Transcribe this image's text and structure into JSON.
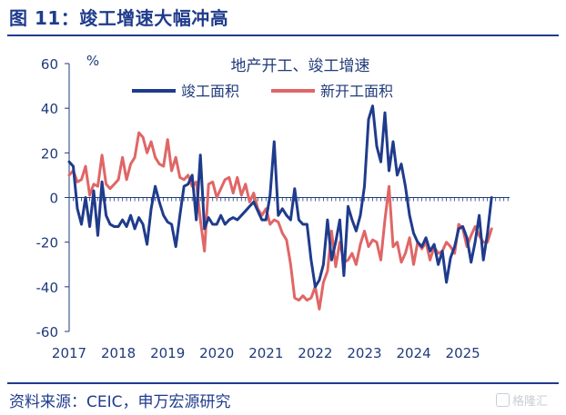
{
  "figure": {
    "title": "图 11：竣工增速大幅冲高",
    "source": "资料来源：CEIC，申万宏源研究",
    "watermark": "格隆汇"
  },
  "chart_data": {
    "type": "line",
    "title": "地产开工、竣工增速",
    "ylabel": "%",
    "ylim": [
      -60,
      60
    ],
    "yticks": [
      60,
      40,
      20,
      0,
      -20,
      -40,
      -60
    ],
    "xticks": [
      "2017",
      "2018",
      "2019",
      "2020",
      "2021",
      "2022",
      "2023",
      "2024",
      "2025"
    ],
    "xrange": [
      2017.0,
      2025.95
    ],
    "grid": false,
    "legend_position": "top",
    "series": [
      {
        "name": "竣工面积",
        "color": "#1f3b8c",
        "x": [
          2017.0,
          2017.083,
          2017.167,
          2017.25,
          2017.333,
          2017.417,
          2017.5,
          2017.583,
          2017.667,
          2017.75,
          2017.833,
          2017.917,
          2018.0,
          2018.083,
          2018.167,
          2018.25,
          2018.333,
          2018.417,
          2018.5,
          2018.583,
          2018.667,
          2018.75,
          2018.833,
          2018.917,
          2019.0,
          2019.083,
          2019.167,
          2019.25,
          2019.333,
          2019.417,
          2019.5,
          2019.583,
          2019.667,
          2019.75,
          2019.833,
          2019.917,
          2020.0,
          2020.083,
          2020.167,
          2020.25,
          2020.333,
          2020.417,
          2020.5,
          2020.583,
          2020.667,
          2020.75,
          2020.833,
          2020.917,
          2021.0,
          2021.083,
          2021.167,
          2021.25,
          2021.333,
          2021.417,
          2021.5,
          2021.583,
          2021.667,
          2021.75,
          2021.833,
          2021.917,
          2022.0,
          2022.083,
          2022.167,
          2022.25,
          2022.333,
          2022.417,
          2022.5,
          2022.583,
          2022.667,
          2022.75,
          2022.833,
          2022.917,
          2023.0,
          2023.083,
          2023.167,
          2023.25,
          2023.333,
          2023.417,
          2023.5,
          2023.583,
          2023.667,
          2023.75,
          2023.833,
          2023.917,
          2024.0,
          2024.083,
          2024.167,
          2024.25,
          2024.333,
          2024.417,
          2024.5,
          2024.583,
          2024.667,
          2024.75,
          2024.833,
          2024.917,
          2025.0,
          2025.083,
          2025.167,
          2025.25,
          2025.333,
          2025.417,
          2025.5,
          2025.583
        ],
        "values": [
          16,
          14,
          -5,
          -12,
          0,
          -13,
          3,
          -17,
          7,
          -8,
          -12,
          -13,
          -13,
          -10,
          -13,
          -8,
          -14,
          -9,
          -12,
          -21,
          -5,
          5,
          -2,
          -8,
          -11,
          -12,
          -22,
          -8,
          5,
          6,
          10,
          -10,
          19,
          -14,
          -9,
          -12,
          -12,
          -8,
          -12,
          -10,
          -9,
          -10,
          -8,
          -6,
          -4,
          -2,
          -6,
          -10,
          -10,
          1,
          25,
          -8,
          -5,
          -8,
          -10,
          4,
          -10,
          -12,
          -12,
          -28,
          -40,
          -37,
          -30,
          -10,
          -28,
          -20,
          -10,
          -35,
          -4,
          -10,
          -15,
          -8,
          5,
          35,
          41,
          23,
          16,
          38,
          12,
          25,
          10,
          15,
          5,
          -8,
          -16,
          -20,
          -22,
          -18,
          -24,
          -21,
          -30,
          -24,
          -38,
          -27,
          -22,
          -14,
          -13,
          -18,
          -29,
          -20,
          -8,
          -28,
          -16,
          0
        ]
      },
      {
        "name": "新开工面积",
        "color": "#e06666",
        "x": [
          2017.0,
          2017.083,
          2017.167,
          2017.25,
          2017.333,
          2017.417,
          2017.5,
          2017.583,
          2017.667,
          2017.75,
          2017.833,
          2017.917,
          2018.0,
          2018.083,
          2018.167,
          2018.25,
          2018.333,
          2018.417,
          2018.5,
          2018.583,
          2018.667,
          2018.75,
          2018.833,
          2018.917,
          2019.0,
          2019.083,
          2019.167,
          2019.25,
          2019.333,
          2019.417,
          2019.5,
          2019.583,
          2019.667,
          2019.75,
          2019.833,
          2019.917,
          2020.0,
          2020.083,
          2020.167,
          2020.25,
          2020.333,
          2020.417,
          2020.5,
          2020.583,
          2020.667,
          2020.75,
          2020.833,
          2020.917,
          2021.0,
          2021.083,
          2021.167,
          2021.25,
          2021.333,
          2021.417,
          2021.5,
          2021.583,
          2021.667,
          2021.75,
          2021.833,
          2021.917,
          2022.0,
          2022.083,
          2022.167,
          2022.25,
          2022.333,
          2022.417,
          2022.5,
          2022.583,
          2022.667,
          2022.75,
          2022.833,
          2022.917,
          2023.0,
          2023.083,
          2023.167,
          2023.25,
          2023.333,
          2023.417,
          2023.5,
          2023.583,
          2023.667,
          2023.75,
          2023.833,
          2023.917,
          2024.0,
          2024.083,
          2024.167,
          2024.25,
          2024.333,
          2024.417,
          2024.5,
          2024.583,
          2024.667,
          2024.75,
          2024.833,
          2024.917,
          2025.0,
          2025.083,
          2025.167,
          2025.25,
          2025.333,
          2025.417,
          2025.5,
          2025.583
        ],
        "values": [
          10,
          12,
          7,
          8,
          14,
          1,
          6,
          5,
          19,
          6,
          4,
          6,
          8,
          18,
          8,
          15,
          18,
          29,
          27,
          20,
          25,
          18,
          15,
          14,
          26,
          12,
          18,
          9,
          8,
          10,
          5,
          7,
          -10,
          -24,
          6,
          7,
          0,
          4,
          8,
          9,
          2,
          9,
          1,
          6,
          -2,
          2,
          -5,
          -8,
          -5,
          -12,
          -10,
          -11,
          -16,
          -19,
          -30,
          -45,
          -46,
          -44,
          -46,
          -45,
          -40,
          -50,
          -38,
          -33,
          -15,
          -31,
          -20,
          -29,
          -28,
          -25,
          -30,
          -21,
          -15,
          -22,
          -19,
          -20,
          -28,
          -10,
          5,
          -22,
          -20,
          -29,
          -25,
          -18,
          -30,
          -20,
          -23,
          -20,
          -28,
          -22,
          -25,
          -24,
          -20,
          -22,
          -25,
          -12,
          -14,
          -22,
          -17,
          -13,
          -17,
          -20,
          -20,
          -14
        ]
      }
    ]
  }
}
